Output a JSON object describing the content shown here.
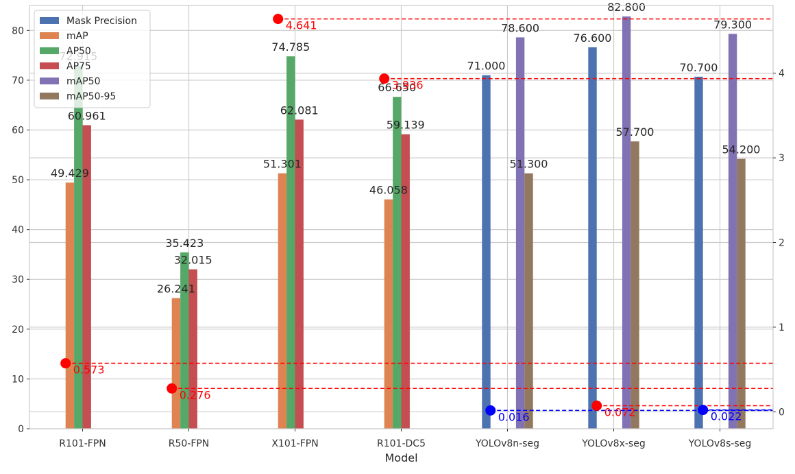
{
  "chart_data": {
    "type": "bar",
    "xlabel": "Model",
    "ylabel": "",
    "ylim": [
      0,
      85
    ],
    "y2lim": [
      -0.2,
      4.8
    ],
    "yticks": [
      0,
      10,
      20,
      30,
      40,
      50,
      60,
      70,
      80
    ],
    "y2ticks": [
      0,
      1,
      2,
      3,
      4
    ],
    "grid": true,
    "legend_position": "top-left",
    "categories": [
      "R101-FPN",
      "R50-FPN",
      "X101-FPN",
      "R101-DC5",
      "YOLOv8n-seg",
      "YOLOv8x-seg",
      "YOLOv8s-seg"
    ],
    "series": [
      {
        "name": "Mask Precision",
        "color": "#4c72b0",
        "values": [
          null,
          null,
          null,
          null,
          71.0,
          76.6,
          70.7
        ],
        "labels": [
          "",
          "",
          "",
          "",
          "71.000",
          "76.600",
          "70.700"
        ]
      },
      {
        "name": "mAP",
        "color": "#dd8452",
        "values": [
          49.429,
          26.241,
          51.301,
          46.058,
          null,
          null,
          null
        ],
        "labels": [
          "49.429",
          "26.241",
          "51.301",
          "46.058",
          "",
          "",
          ""
        ]
      },
      {
        "name": "AP50",
        "color": "#55a868",
        "values": [
          72.915,
          35.423,
          74.785,
          66.65,
          null,
          null,
          null
        ],
        "labels": [
          "72.915",
          "35.423",
          "74.785",
          "66.650",
          "",
          "",
          ""
        ]
      },
      {
        "name": "AP75",
        "color": "#c44e52",
        "values": [
          60.961,
          32.015,
          62.081,
          59.139,
          null,
          null,
          null
        ],
        "labels": [
          "60.961",
          "32.015",
          "62.081",
          "59.139",
          "",
          "",
          ""
        ]
      },
      {
        "name": "mAP50",
        "color": "#8172b3",
        "values": [
          null,
          null,
          null,
          null,
          78.6,
          82.8,
          79.3
        ],
        "labels": [
          "",
          "",
          "",
          "",
          "78.600",
          "82.800",
          "79.300"
        ]
      },
      {
        "name": "mAP50-95",
        "color": "#937860",
        "values": [
          null,
          null,
          null,
          null,
          51.3,
          57.7,
          54.2
        ],
        "labels": [
          "",
          "",
          "",
          "",
          "51.300",
          "57.700",
          "54.200"
        ]
      }
    ],
    "secondary_points": [
      {
        "category": "R101-FPN",
        "value": 0.573,
        "label": "0.573",
        "color": "#ff0000"
      },
      {
        "category": "R50-FPN",
        "value": 0.276,
        "label": "0.276",
        "color": "#ff0000"
      },
      {
        "category": "X101-FPN",
        "value": 4.641,
        "label": "4.641",
        "color": "#ff0000"
      },
      {
        "category": "R101-DC5",
        "value": 3.936,
        "label": "3.936",
        "color": "#ff0000"
      },
      {
        "category": "YOLOv8n-seg",
        "value": 0.016,
        "label": "0.016",
        "color": "#0000ff"
      },
      {
        "category": "YOLOv8x-seg",
        "value": 0.072,
        "label": "0.072",
        "color": "#ff0000"
      },
      {
        "category": "YOLOv8s-seg",
        "value": 0.022,
        "label": "0.022",
        "color": "#0000ff"
      }
    ]
  }
}
